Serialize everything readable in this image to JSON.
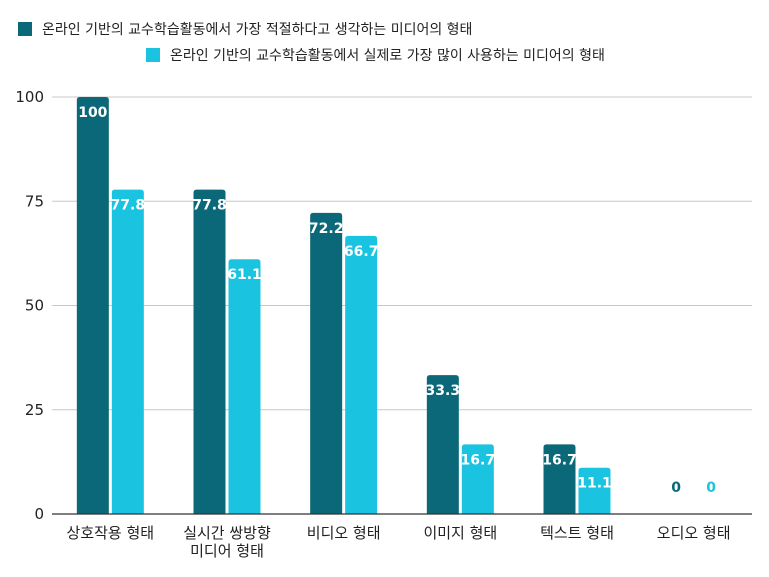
{
  "chart_data": {
    "type": "bar",
    "title": "",
    "xlabel": "",
    "ylabel": "",
    "ylim": [
      0,
      100
    ],
    "yticks": [
      0,
      25,
      50,
      75,
      100
    ],
    "grid": true,
    "legend_position": "top",
    "categories": [
      [
        "상호작용 형태"
      ],
      [
        "실시간 쌍방향",
        "미디어 형태"
      ],
      [
        "비디오 형태"
      ],
      [
        "이미지 형태"
      ],
      [
        "텍스트 형태"
      ],
      [
        "오디오 형태"
      ]
    ],
    "series": [
      {
        "name": "온라인 기반의 교수학습활동에서 가장 적절하다고 생각하는 미디어의 형태",
        "color": "#0b6878",
        "values": [
          100,
          77.8,
          72.2,
          33.3,
          16.7,
          0
        ],
        "labels": [
          "100",
          "77.8",
          "72.2",
          "33.3",
          "16.7",
          "0"
        ]
      },
      {
        "name": "온라인 기반의 교수학습활동에서 실제로 가장 많이 사용하는 미디어의 형태",
        "color": "#1ac4e0",
        "values": [
          77.8,
          61.1,
          66.7,
          16.7,
          11.1,
          0
        ],
        "labels": [
          "77.8",
          "61.1",
          "66.7",
          "16.7",
          "11.1",
          "0"
        ]
      }
    ]
  }
}
